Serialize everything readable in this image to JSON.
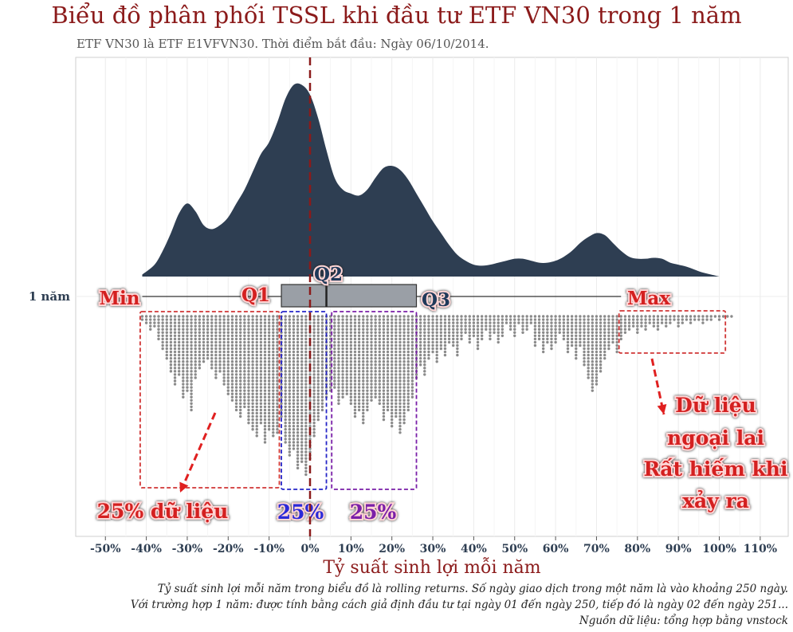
{
  "chart_data": {
    "type": "density-boxplot-dotplot",
    "title": "Biểu đồ phân phối TSSL khi đầu tư ETF VN30 trong 1 năm",
    "subtitle": "ETF VN30 là ETF E1VFVN30.  Thời điểm bắt đầu: Ngày 06/10/2014.",
    "xlabel": "Tỷ suất sinh lợi mỗi năm",
    "ylabel_category": "1 năm",
    "x_ticks": [
      "-50%",
      "-40%",
      "-30%",
      "-20%",
      "-10%",
      "0%",
      "10%",
      "20%",
      "30%",
      "40%",
      "50%",
      "60%",
      "70%",
      "80%",
      "90%",
      "100%",
      "110%"
    ],
    "x_tick_values": [
      -50,
      -40,
      -30,
      -20,
      -10,
      0,
      10,
      20,
      30,
      40,
      50,
      60,
      70,
      80,
      90,
      100,
      110
    ],
    "xlim": [
      -55,
      115
    ],
    "reference_line_x": 0,
    "boxplot": {
      "min": -41,
      "q1": -7,
      "median": 4,
      "q3": 26,
      "max": 76
    },
    "box_labels": {
      "min": "Min",
      "q1": "Q1",
      "q2": "Q2",
      "q3": "Q3",
      "max": "Max"
    },
    "density": {
      "x": [
        -41,
        -38,
        -36,
        -34,
        -32,
        -30,
        -28,
        -26,
        -24,
        -22,
        -20,
        -18,
        -16,
        -14,
        -12,
        -10,
        -8,
        -6,
        -4,
        -2,
        0,
        2,
        4,
        6,
        8,
        10,
        12,
        14,
        16,
        18,
        20,
        22,
        24,
        26,
        28,
        30,
        32,
        34,
        36,
        38,
        40,
        42,
        44,
        46,
        48,
        50,
        52,
        54,
        56,
        58,
        60,
        62,
        64,
        66,
        68,
        70,
        72,
        74,
        76,
        78,
        80,
        82,
        84,
        86,
        88,
        90,
        92,
        94,
        96,
        98,
        100
      ],
      "y": [
        0.01,
        0.06,
        0.13,
        0.22,
        0.32,
        0.37,
        0.33,
        0.26,
        0.24,
        0.26,
        0.3,
        0.37,
        0.44,
        0.53,
        0.62,
        0.68,
        0.78,
        0.9,
        0.97,
        0.97,
        0.92,
        0.8,
        0.64,
        0.5,
        0.44,
        0.42,
        0.41,
        0.44,
        0.5,
        0.55,
        0.56,
        0.54,
        0.49,
        0.42,
        0.35,
        0.28,
        0.22,
        0.16,
        0.11,
        0.08,
        0.06,
        0.055,
        0.06,
        0.07,
        0.08,
        0.09,
        0.09,
        0.08,
        0.07,
        0.07,
        0.08,
        0.1,
        0.13,
        0.17,
        0.2,
        0.22,
        0.21,
        0.17,
        0.13,
        0.1,
        0.09,
        0.09,
        0.095,
        0.09,
        0.07,
        0.06,
        0.05,
        0.035,
        0.02,
        0.01,
        0.0
      ]
    },
    "dot_counts": {
      "x": [
        -41,
        -40,
        -39,
        -38,
        -37,
        -36,
        -35,
        -34,
        -33,
        -32,
        -31,
        -30,
        -29,
        -28,
        -27,
        -26,
        -25,
        -24,
        -23,
        -22,
        -21,
        -20,
        -19,
        -18,
        -17,
        -16,
        -15,
        -14,
        -13,
        -12,
        -11,
        -10,
        -9,
        -8,
        -7,
        -6,
        -5,
        -4,
        -3,
        -2,
        -1,
        0,
        1,
        2,
        3,
        4,
        5,
        6,
        7,
        8,
        9,
        10,
        11,
        12,
        13,
        14,
        15,
        16,
        17,
        18,
        19,
        20,
        21,
        22,
        23,
        24,
        25,
        26,
        27,
        28,
        29,
        30,
        31,
        32,
        33,
        34,
        35,
        36,
        37,
        38,
        39,
        40,
        41,
        42,
        43,
        44,
        45,
        46,
        47,
        48,
        49,
        50,
        51,
        52,
        53,
        54,
        55,
        56,
        57,
        58,
        59,
        60,
        61,
        62,
        63,
        64,
        65,
        66,
        67,
        68,
        69,
        70,
        71,
        72,
        73,
        74,
        75,
        76,
        77,
        78,
        79,
        80,
        81,
        82,
        83,
        84,
        85,
        86,
        87,
        88,
        89,
        90,
        91,
        92,
        93,
        94,
        95,
        96,
        97,
        98,
        99,
        100,
        101,
        102,
        103
      ],
      "counts": [
        2,
        3,
        5,
        4,
        8,
        11,
        14,
        18,
        22,
        19,
        26,
        24,
        30,
        20,
        17,
        15,
        14,
        17,
        20,
        18,
        22,
        25,
        27,
        30,
        32,
        29,
        34,
        36,
        38,
        34,
        40,
        36,
        38,
        37,
        32,
        40,
        44,
        42,
        48,
        46,
        50,
        45,
        38,
        33,
        30,
        26,
        24,
        23,
        28,
        26,
        25,
        28,
        32,
        30,
        34,
        30,
        27,
        26,
        28,
        33,
        30,
        35,
        32,
        37,
        34,
        30,
        26,
        20,
        16,
        19,
        14,
        12,
        15,
        11,
        13,
        9,
        10,
        13,
        8,
        6,
        9,
        7,
        11,
        8,
        5,
        8,
        6,
        9,
        7,
        3,
        5,
        7,
        3,
        6,
        5,
        3,
        10,
        8,
        12,
        9,
        11,
        9,
        6,
        8,
        12,
        10,
        14,
        10,
        16,
        20,
        24,
        22,
        18,
        14,
        11,
        9,
        12,
        8,
        6,
        5,
        4,
        6,
        4,
        5,
        3,
        4,
        5,
        3,
        4,
        3,
        2,
        4,
        3,
        2,
        3,
        2,
        2,
        3,
        2,
        2,
        1,
        2,
        1,
        1,
        1
      ]
    },
    "annotations": {
      "group_25_left": "25% dữ liệu",
      "group_25_mid": "25%",
      "group_25_right": "25%",
      "outlier_line1": "Dữ liệu",
      "outlier_line2": "ngoại lai",
      "outlier_line3": "Rất hiếm khi",
      "outlier_line4": "xảy ra"
    },
    "colors": {
      "title": "#8b1a1a",
      "density_fill": "#2e3e52",
      "box_fill": "#9a9fa6",
      "dots": "#8a8a8a",
      "ref_line": "#8b1a1a",
      "red_box": "#d03535",
      "blue_box": "#2626c8",
      "purple_box": "#7a1fa8"
    }
  },
  "captions": {
    "line1": "Tỷ suất sinh lợi mỗi năm trong biểu đồ là rolling returns. Số ngày giao dịch trong một năm là vào khoảng 250 ngày.",
    "line2": "Với trường hợp 1 năm: được tính bằng cách giả định đầu tư tại ngày 01 đến ngày 250, tiếp đó là ngày 02 đến ngày 251...",
    "line3": "Nguồn dữ liệu: tổng hợp bằng vnstock"
  }
}
